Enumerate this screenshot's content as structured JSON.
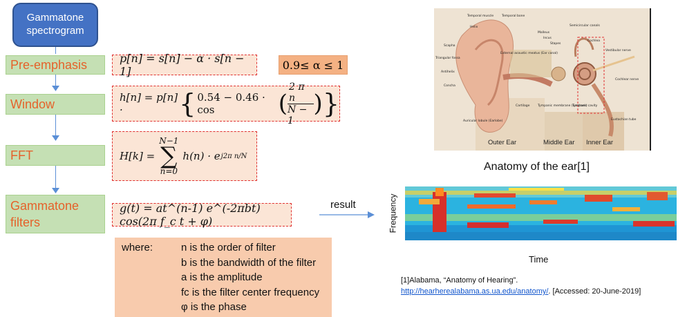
{
  "title": "Gammatone spectrogram",
  "steps": {
    "preemphasis": "Pre-emphasis",
    "window": "Window",
    "fft": "FFT",
    "gammatone": "Gammatone filters"
  },
  "formulas": {
    "preemphasis": "p[n] = s[n] − α · s[n − 1]",
    "alpha_range": "0.9≤ α ≤ 1",
    "window_lhs": "h[n] = p[n] ·",
    "window_a": "0.54 − 0.46 · cos",
    "window_num": "2 π n",
    "window_den": "N − 1",
    "fft_lhs": "H[k] =",
    "fft_upper": "N−1",
    "fft_lower": "n=0",
    "fft_sigma": "∑",
    "fft_body": "h(n) · e",
    "fft_exp": "j2π n/N",
    "gammatone": "g(t) = at^(n-1) e^(-2πbt) cos(2π f_c t + φ)"
  },
  "where": {
    "intro": "where:",
    "lines": [
      "n is the order of filter",
      "b is the bandwidth of the filter",
      "a is the amplitude",
      "fc is the filter center frequency",
      "φ is the phase"
    ]
  },
  "result_label": "result",
  "ear": {
    "caption": "Anatomy of the ear[1]",
    "regions": [
      "Outer Ear",
      "Middle Ear",
      "Inner Ear"
    ],
    "labels": [
      "Temporal muscle",
      "Temporal bone",
      "Helix",
      "Scapha",
      "Triangular fossa",
      "Antihelix",
      "Concha",
      "Auricular lobule (Earlobe)",
      "External acoustic meatus (Ear canal)",
      "Malleus",
      "Incus",
      "Stapes",
      "Semicircular canals",
      "Cochlea",
      "Vestibular nerve",
      "Cochlear nerve",
      "Cartilage",
      "Tympanic membrane (Eardrum)",
      "Tympanic cavity",
      "Eustachian tube"
    ]
  },
  "spectrogram": {
    "ylabel": "Frequency",
    "xlabel": "Time"
  },
  "reference": {
    "line1": "[1]Alabama, “Anatomy of Hearing”.",
    "link": "http://hearherealabama.as.ua.edu/anatomy/",
    "line2_tail": ". [Accessed: 20-June-2019]"
  },
  "colors": {
    "title_bg": "#4472c4",
    "step_bg": "#c5e0b4",
    "step_text": "#e5622b",
    "formula_bg": "#fbe5d6",
    "formula_border": "#e03030",
    "where_bg": "#f8cbad",
    "arrow": "#5b8fd6"
  }
}
